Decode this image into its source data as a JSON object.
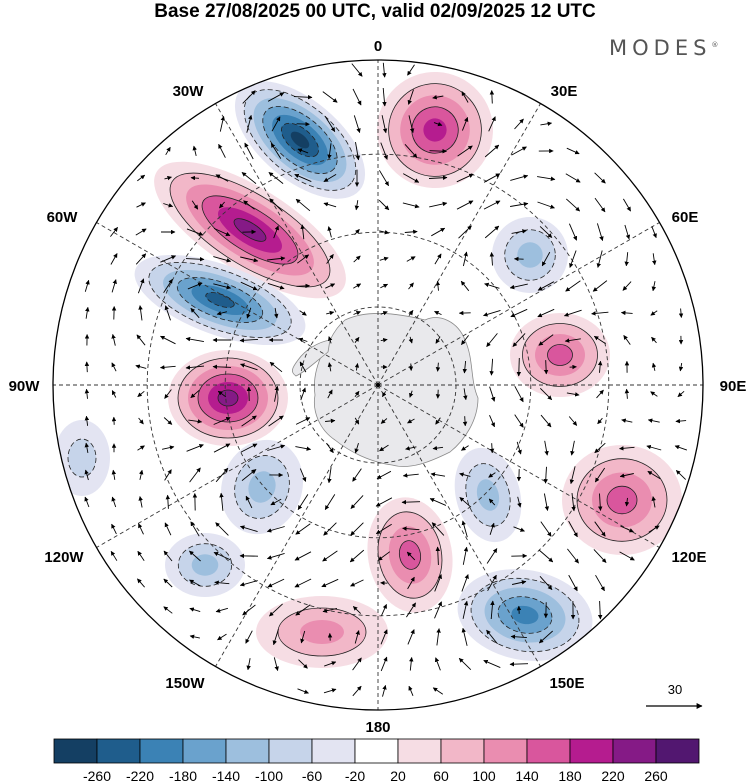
{
  "header": {
    "title": "Base 27/08/2025 00 UTC, valid 02/09/2025 12 UTC",
    "brand": "MODES",
    "brand_mark": "®"
  },
  "map": {
    "projection": "south-polar-stereographic",
    "longitude_labels": [
      "0",
      "30E",
      "60E",
      "90E",
      "120E",
      "150E",
      "180",
      "150W",
      "120W",
      "90W",
      "60W",
      "30W"
    ],
    "reference_vector_label": "30",
    "anomalies": [
      {
        "name": "neg-anomaly-30w",
        "value": -260
      },
      {
        "name": "pos-anomaly-60w",
        "value": 240
      },
      {
        "name": "neg-anomaly-65w",
        "value": -240
      },
      {
        "name": "pos-anomaly-90w",
        "value": 240
      },
      {
        "name": "pos-anomaly-15e",
        "value": 180
      },
      {
        "name": "neg-anomaly-45e",
        "value": -120
      },
      {
        "name": "pos-anomaly-80e",
        "value": 140
      },
      {
        "name": "pos-anomaly-110e",
        "value": 170
      },
      {
        "name": "neg-anomaly-140e",
        "value": -200
      },
      {
        "name": "pos-anomaly-175e",
        "value": 170
      },
      {
        "name": "neg-anomaly-145e-inner",
        "value": -110
      },
      {
        "name": "neg-anomaly-125w",
        "value": -130
      },
      {
        "name": "neg-anomaly-105w",
        "value": -110
      },
      {
        "name": "pos-anomaly-165w",
        "value": 110
      },
      {
        "name": "neg-anomaly-100w-rim",
        "value": -90
      }
    ]
  },
  "colorbar": {
    "tick_labels": [
      "-260",
      "-220",
      "-180",
      "-140",
      "-100",
      "-60",
      "-20",
      "20",
      "60",
      "100",
      "140",
      "180",
      "220",
      "260"
    ],
    "colors": [
      "#143f63",
      "#1f5d8c",
      "#3b82b5",
      "#6aa2cd",
      "#9dbfde",
      "#c6d4ea",
      "#e3e4f2",
      "#ffffff",
      "#f6dde4",
      "#f2b7c8",
      "#ea8db0",
      "#d9569d",
      "#b51c8f",
      "#851a86",
      "#521770"
    ]
  }
}
